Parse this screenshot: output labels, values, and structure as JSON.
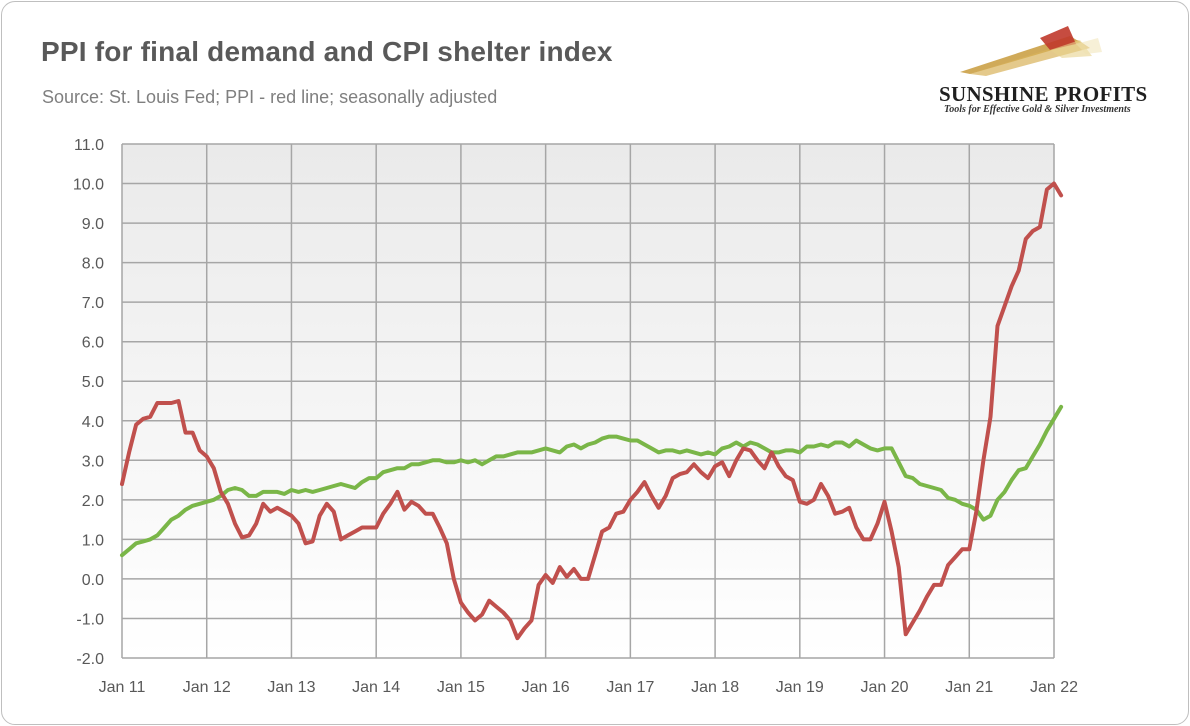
{
  "title": "PPI for final demand and CPI shelter index",
  "subtitle": "Source: St. Louis Fed; PPI - red line; seasonally adjusted",
  "logo": {
    "name": "SUNSHINE PROFITS",
    "tagline": "Tools for Effective Gold & Silver Investments"
  },
  "colors": {
    "ppi": "#c0504d",
    "cpi_shelter": "#7ab648",
    "plot_top": "#eaeaea",
    "plot_bottom": "#ffffff",
    "grid": "#a6a6a6",
    "text": "#595959"
  },
  "chart_data": {
    "type": "line",
    "title": "PPI for final demand and CPI shelter index",
    "subtitle": "Source: St. Louis Fed; PPI - red line; seasonally adjusted",
    "xlabel": "",
    "ylabel": "",
    "ylim": [
      -2.0,
      11.0
    ],
    "y_ticks": [
      "11.0",
      "10.0",
      "9.0",
      "8.0",
      "7.0",
      "6.0",
      "5.0",
      "4.0",
      "3.0",
      "2.0",
      "1.0",
      "0.0",
      "-1.0",
      "-2.0"
    ],
    "x_ticks": [
      "Jan 11",
      "Jan 12",
      "Jan 13",
      "Jan 14",
      "Jan 15",
      "Jan 16",
      "Jan 17",
      "Jan 18",
      "Jan 19",
      "Jan 20",
      "Jan 21",
      "Jan 22"
    ],
    "x_start": "Jan 11",
    "x_frequency": "monthly",
    "grid": true,
    "series": [
      {
        "name": "PPI",
        "color": "#c0504d",
        "values": [
          2.4,
          3.2,
          3.9,
          4.05,
          4.1,
          4.45,
          4.45,
          4.45,
          4.5,
          3.7,
          3.7,
          3.25,
          3.1,
          2.8,
          2.2,
          1.9,
          1.4,
          1.05,
          1.1,
          1.4,
          1.9,
          1.7,
          1.8,
          1.7,
          1.6,
          1.4,
          0.9,
          0.95,
          1.6,
          1.9,
          1.7,
          1.0,
          1.1,
          1.2,
          1.3,
          1.3,
          1.3,
          1.65,
          1.9,
          2.2,
          1.75,
          1.95,
          1.85,
          1.65,
          1.65,
          1.3,
          0.9,
          0.0,
          -0.6,
          -0.85,
          -1.05,
          -0.9,
          -0.55,
          -0.7,
          -0.85,
          -1.05,
          -1.5,
          -1.25,
          -1.05,
          -0.15,
          0.1,
          -0.1,
          0.3,
          0.05,
          0.25,
          0.0,
          0.0,
          0.6,
          1.2,
          1.3,
          1.65,
          1.7,
          2.0,
          2.2,
          2.45,
          2.1,
          1.8,
          2.1,
          2.55,
          2.65,
          2.7,
          2.9,
          2.7,
          2.55,
          2.85,
          2.95,
          2.6,
          3.0,
          3.3,
          3.25,
          3.0,
          2.8,
          3.2,
          2.85,
          2.6,
          2.5,
          1.95,
          1.9,
          2.0,
          2.4,
          2.1,
          1.65,
          1.7,
          1.8,
          1.3,
          1.0,
          1.0,
          1.4,
          1.95,
          1.2,
          0.3,
          -1.4,
          -1.1,
          -0.8,
          -0.45,
          -0.15,
          -0.15,
          0.35,
          0.55,
          0.75,
          0.75,
          1.7,
          3.0,
          4.1,
          6.4,
          6.9,
          7.4,
          7.8,
          8.6,
          8.8,
          8.9,
          9.85,
          10.0,
          9.7
        ]
      },
      {
        "name": "CPI shelter",
        "color": "#7ab648",
        "values": [
          0.6,
          0.75,
          0.9,
          0.95,
          1.0,
          1.1,
          1.3,
          1.5,
          1.6,
          1.75,
          1.85,
          1.9,
          1.95,
          2.0,
          2.1,
          2.25,
          2.3,
          2.25,
          2.1,
          2.1,
          2.2,
          2.2,
          2.2,
          2.15,
          2.25,
          2.2,
          2.25,
          2.2,
          2.25,
          2.3,
          2.35,
          2.4,
          2.35,
          2.3,
          2.45,
          2.55,
          2.55,
          2.7,
          2.75,
          2.8,
          2.8,
          2.9,
          2.9,
          2.95,
          3.0,
          3.0,
          2.95,
          2.95,
          3.0,
          2.95,
          3.0,
          2.9,
          3.0,
          3.1,
          3.1,
          3.15,
          3.2,
          3.2,
          3.2,
          3.25,
          3.3,
          3.25,
          3.2,
          3.35,
          3.4,
          3.3,
          3.4,
          3.45,
          3.55,
          3.6,
          3.6,
          3.55,
          3.5,
          3.5,
          3.4,
          3.3,
          3.2,
          3.25,
          3.25,
          3.2,
          3.25,
          3.2,
          3.15,
          3.2,
          3.15,
          3.3,
          3.35,
          3.45,
          3.35,
          3.45,
          3.4,
          3.3,
          3.2,
          3.2,
          3.25,
          3.25,
          3.2,
          3.35,
          3.35,
          3.4,
          3.35,
          3.45,
          3.45,
          3.35,
          3.5,
          3.4,
          3.3,
          3.25,
          3.3,
          3.3,
          2.95,
          2.6,
          2.55,
          2.4,
          2.35,
          2.3,
          2.25,
          2.05,
          2.0,
          1.9,
          1.85,
          1.75,
          1.5,
          1.6,
          2.0,
          2.2,
          2.5,
          2.75,
          2.8,
          3.1,
          3.4,
          3.75,
          4.05,
          4.35
        ]
      }
    ]
  }
}
